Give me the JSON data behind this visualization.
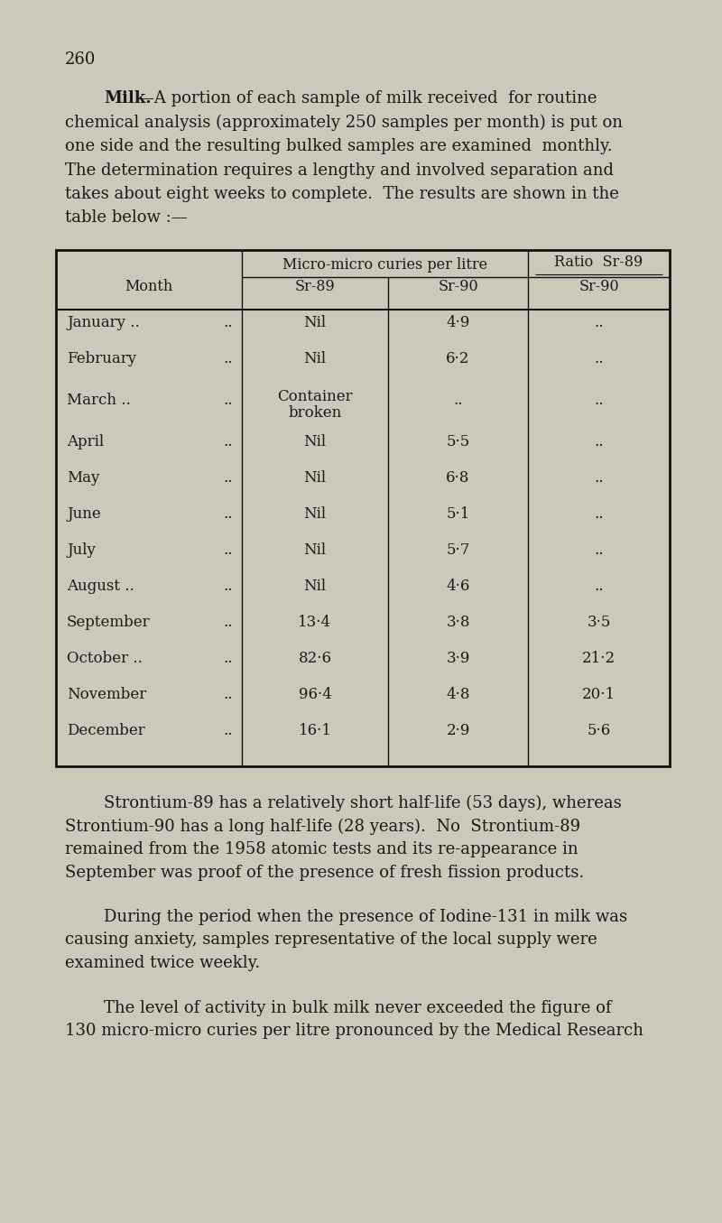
{
  "page_number": "260",
  "bg_color": "#ccc9bb",
  "text_color": "#1a1a1a",
  "para1_bold": "Milk.",
  "para1_rest": "—A portion of each sample of milk received  for routine chemical analysis (approximately 250 samples per month) is put on one side and the resulting bulked samples are examined monthly. The determination requires a lengthy and involved separation and takes about eight weeks to complete.  The results are shown in the table below :—",
  "table_col_header1": "Micro-micro curies per litre",
  "table_col_header2": "Ratio  Sr-89",
  "table_row_headers": [
    "Sr-89",
    "Sr-90",
    "Sr-90"
  ],
  "table_month_col": "Month",
  "table_rows": [
    [
      "January ..",
      "..",
      "Nil",
      "4·9",
      ".."
    ],
    [
      "February",
      "..",
      "Nil",
      "6·2",
      ".."
    ],
    [
      "March ..",
      "..",
      "Container\nbroken",
      "..",
      ".."
    ],
    [
      "April",
      "..",
      "Nil",
      "5·5",
      ".."
    ],
    [
      "May",
      "..",
      "Nil",
      "6·8",
      ".."
    ],
    [
      "June",
      "..",
      "Nil",
      "5·1",
      ".."
    ],
    [
      "July",
      "..",
      "Nil",
      "5·7",
      ".."
    ],
    [
      "August ..",
      "..",
      "Nil",
      "4·6",
      ".."
    ],
    [
      "September",
      "..",
      "13·4",
      "3·8",
      "3·5"
    ],
    [
      "October ..",
      "..",
      "82·6",
      "3·9",
      "21·2"
    ],
    [
      "November",
      "..",
      "96·4",
      "4·8",
      "20·1"
    ],
    [
      "December",
      "..",
      "16·1",
      "2·9",
      "5·6"
    ]
  ],
  "para2": "Strontium-89 has a relatively short half-life (53 days), whereas Strontium-90 has a long half-life (28 years).  No  Strontium-89 remained from the 1958 atomic tests and its re-appearance in September was proof of the presence of fresh fission products.",
  "para3": "During the period when the presence of Iodine-131 in milk was causing anxiety, samples representative of the local supply were examined twice weekly.",
  "para4": "The level of activity in bulk milk never exceeded the figure of 130 micro-micro curies per litre pronounced by the Medical Research"
}
